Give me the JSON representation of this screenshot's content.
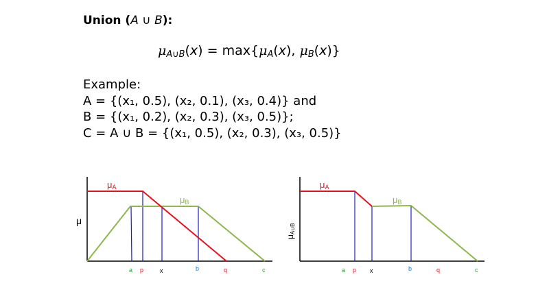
{
  "slide": {
    "title_word": "Union",
    "title_set": "A ∪ B",
    "formula": "μ_{A∪B}(x) = max{μ_A(x), μ_B(x)}",
    "example_label": "Example:",
    "line_a": "A = {(x₁, 0.5), (x₂, 0.1), (x₃, 0.4)} and",
    "line_b": "B = {(x₁, 0.2), (x₂, 0.3), (x₃, 0.5)};",
    "line_c": "C = A ∪ B = {(x₁, 0.5), (x₂, 0.3), (x₃, 0.5)}"
  },
  "colors": {
    "mu_a": "#e8101d",
    "mu_b": "#8db74f",
    "verticals": "#1d1dbd",
    "axis": "#000000",
    "tick_a": "#2e9b2e",
    "tick_p": "#e8101d",
    "tick_x": "#000000",
    "tick_b": "#2277cc",
    "tick_q": "#e8101d",
    "tick_c": "#2e9b2e"
  },
  "diagrams": {
    "left": {
      "y_label": "μ",
      "label_a": "μA",
      "label_b": "μB",
      "ticks": [
        "a",
        "p",
        "x",
        "b",
        "q",
        "c"
      ]
    },
    "right": {
      "y_label": "μA∪B",
      "label_a": "μA",
      "label_b": "μB",
      "ticks": [
        "a",
        "p",
        "x",
        "b",
        "q",
        "c"
      ]
    }
  }
}
